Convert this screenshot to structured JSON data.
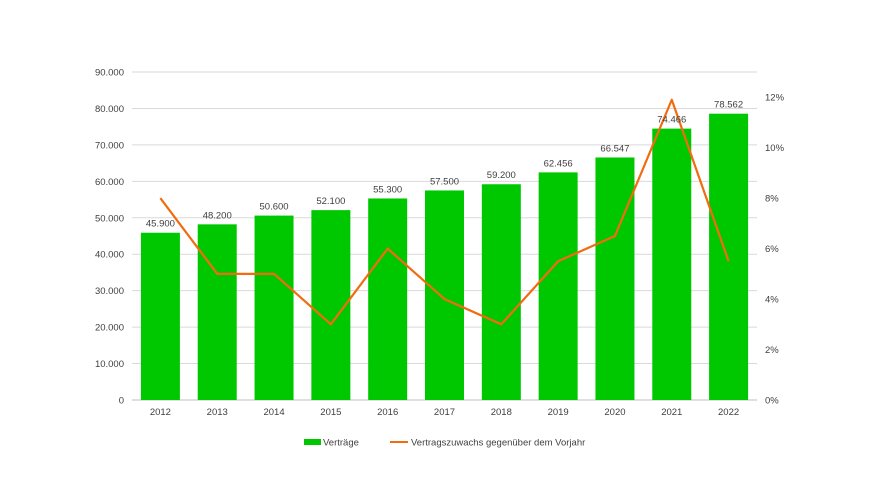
{
  "chart_data": {
    "type": "bar+line",
    "categories": [
      "2012",
      "2013",
      "2014",
      "2015",
      "2016",
      "2017",
      "2018",
      "2019",
      "2020",
      "2021",
      "2022"
    ],
    "series": [
      {
        "name": "Verträge",
        "type": "bar",
        "axis": "left",
        "color": "#00c800",
        "values": [
          45900,
          48200,
          50600,
          52100,
          55300,
          57500,
          59200,
          62456,
          66547,
          74466,
          78562
        ],
        "labels": [
          "45.900",
          "48.200",
          "50.600",
          "52.100",
          "55.300",
          "57.500",
          "59.200",
          "62.456",
          "66.547",
          "74.466",
          "78.562"
        ]
      },
      {
        "name": "Vertragszuwachs gegenüber dem Vorjahr",
        "type": "line",
        "axis": "right",
        "color": "#f26b0f",
        "values": [
          8.0,
          5.0,
          5.0,
          3.0,
          6.0,
          4.0,
          3.0,
          5.5,
          6.5,
          11.9,
          5.5
        ]
      }
    ],
    "left_axis": {
      "ylim": [
        0,
        90000
      ],
      "ticks": [
        0,
        10000,
        20000,
        30000,
        40000,
        50000,
        60000,
        70000,
        80000,
        90000
      ],
      "tick_labels": [
        "0",
        "10.000",
        "20.000",
        "30.000",
        "40.000",
        "50.000",
        "60.000",
        "70.000",
        "80.000",
        "90.000"
      ]
    },
    "right_axis": {
      "ylim": [
        0,
        13
      ],
      "ticks": [
        0,
        2,
        4,
        6,
        8,
        10,
        12
      ],
      "tick_labels": [
        "0%",
        "2%",
        "4%",
        "6%",
        "8%",
        "10%",
        "12%"
      ]
    },
    "grid": true,
    "legend": "bottom"
  }
}
